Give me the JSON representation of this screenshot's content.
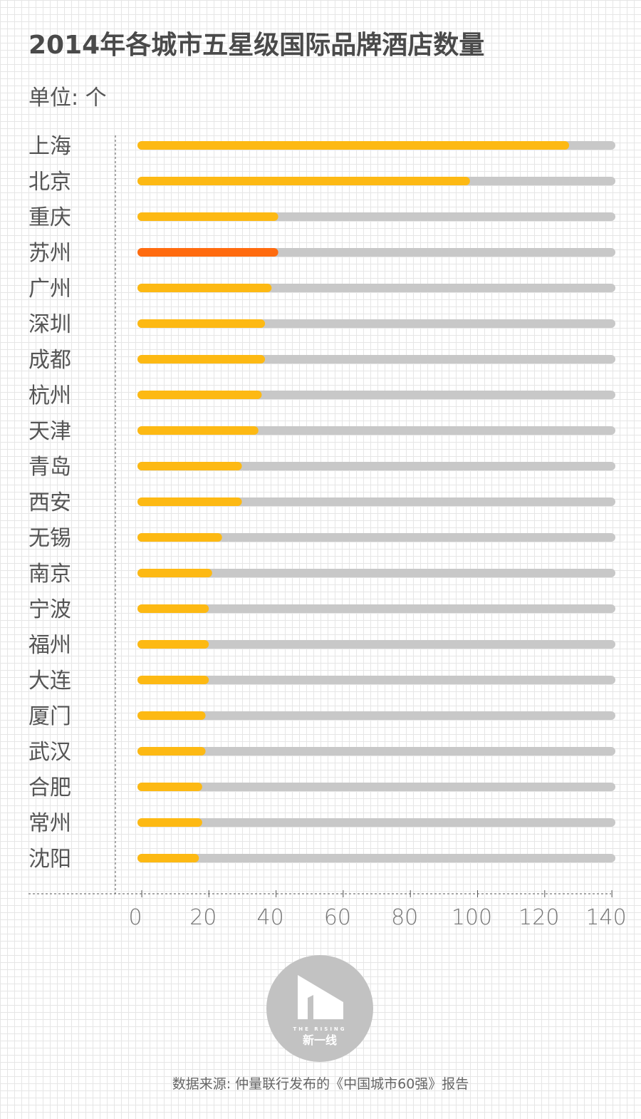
{
  "title": "2014年各城市五星级国际品牌酒店数量",
  "unit": "单位: 个",
  "source": "数据来源: 仲量联行发布的《中国城市60强》报告",
  "logo": {
    "en": "THE RISING",
    "cn": "新一线"
  },
  "colors": {
    "bar": "#FDB913",
    "highlight": "#FF6B0F",
    "track": "#C8C8C8",
    "axis": "#555555"
  },
  "chart_data": {
    "type": "bar",
    "orientation": "horizontal",
    "categories": [
      "上海",
      "北京",
      "重庆",
      "苏州",
      "广州",
      "深圳",
      "成都",
      "杭州",
      "天津",
      "青岛",
      "西安",
      "无锡",
      "南京",
      "宁波",
      "福州",
      "大连",
      "厦门",
      "武汉",
      "合肥",
      "常州",
      "沈阳"
    ],
    "values": [
      128,
      98,
      40,
      40,
      38,
      36,
      36,
      35,
      34,
      29,
      29,
      23,
      20,
      19,
      19,
      19,
      18,
      18,
      17,
      17,
      16
    ],
    "highlight": "苏州",
    "xlim": [
      0,
      142
    ],
    "xticks": [
      0,
      20,
      40,
      60,
      80,
      100,
      120,
      140
    ],
    "grid": false
  }
}
